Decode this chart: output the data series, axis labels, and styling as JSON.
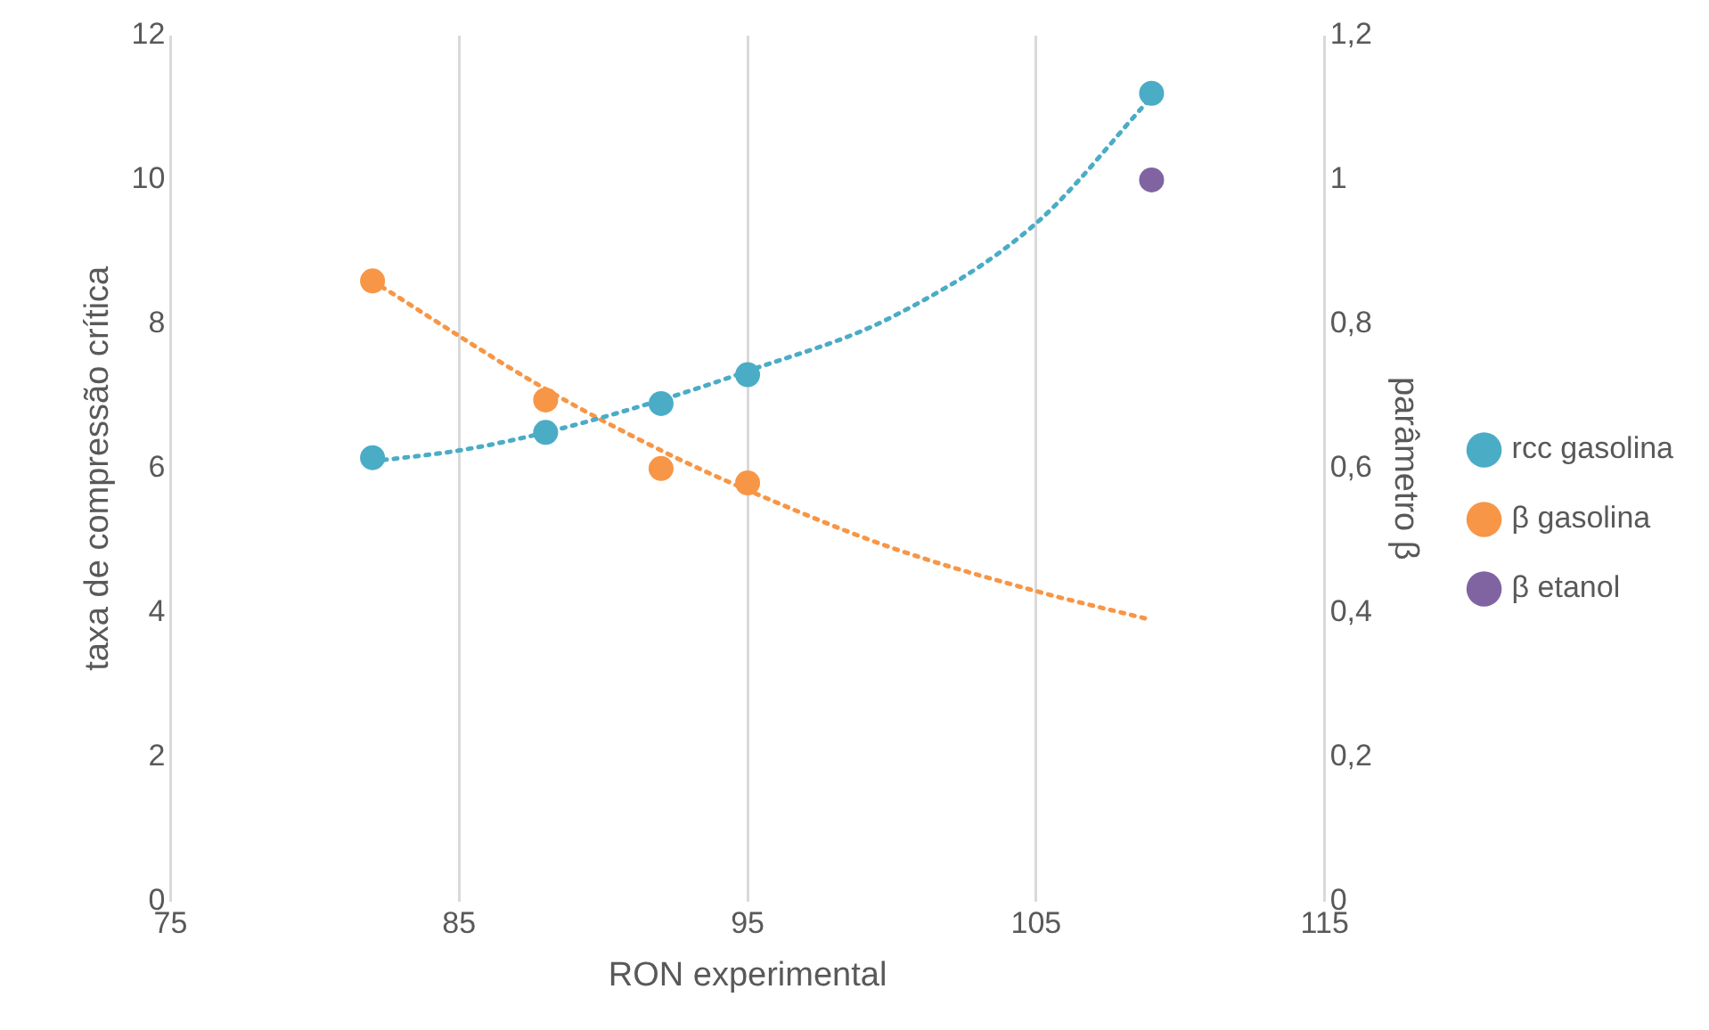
{
  "chart_data": {
    "type": "scatter",
    "xlabel": "RON experimental",
    "ylabel": "taxa de compressão crítica",
    "y2label": "parâmetro β",
    "xlim": [
      75,
      115
    ],
    "xticks": [
      75,
      85,
      95,
      105,
      115
    ],
    "ylim": [
      0,
      12
    ],
    "yticks": [
      0,
      2,
      4,
      6,
      8,
      10,
      12
    ],
    "y2lim": [
      0,
      1.2
    ],
    "y2ticks": [
      0,
      {
        "value": 0.2,
        "label": "0,2"
      },
      {
        "value": 0.4,
        "label": "0,4"
      },
      {
        "value": 0.6,
        "label": "0,6"
      },
      {
        "value": 0.8,
        "label": "0,8"
      },
      1,
      {
        "value": 1.2,
        "label": "1,2"
      }
    ],
    "grid": "x",
    "legend": "right",
    "marker": "circle",
    "series": [
      {
        "type": "line",
        "color": "#4bacc6",
        "line_style": "dotted",
        "marker": "none",
        "x": [
          82,
          85,
          88,
          92,
          95,
          100,
          105,
          109
        ],
        "values": [
          6.1,
          6.25,
          6.5,
          6.95,
          7.35,
          8.1,
          9.4,
          11.15
        ]
      },
      {
        "type": "line",
        "color": "#f79646",
        "line_style": "dotted",
        "marker": "none",
        "axis": "y2",
        "x": [
          82,
          88,
          92,
          95,
          100,
          105,
          109
        ],
        "values": [
          0.86,
          0.71,
          0.625,
          0.57,
          0.49,
          0.43,
          0.39
        ]
      },
      {
        "name": "rcc gasolina",
        "color": "#4bacc6",
        "x": [
          82,
          88,
          92,
          95,
          109
        ],
        "values": [
          6.15,
          6.5,
          6.9,
          7.3,
          11.2
        ]
      },
      {
        "name": "β gasolina",
        "color": "#f79646",
        "axis": "y2",
        "x": [
          82,
          88,
          92,
          95
        ],
        "values": [
          0.86,
          0.695,
          0.6,
          0.58
        ]
      },
      {
        "name": "β etanol",
        "color": "#8064a2",
        "axis": "y2",
        "x": [
          109
        ],
        "values": [
          1.0
        ]
      }
    ]
  }
}
